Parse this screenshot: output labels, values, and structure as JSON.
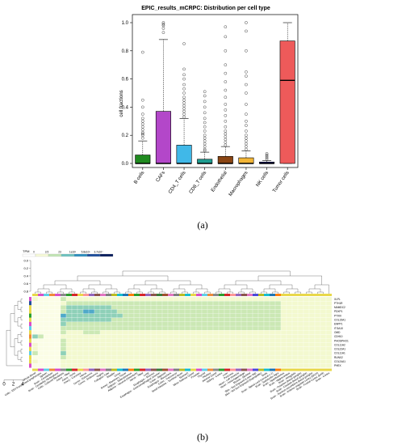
{
  "chart_data": [
    {
      "type": "box",
      "title": "EPIC_results_mCRPC: Distribution per cell type",
      "ylabel": "cell fractions",
      "ylim": [
        0,
        1.05
      ],
      "yticks": [
        0.0,
        0.2,
        0.4,
        0.6,
        0.8,
        1.0
      ],
      "categories": [
        "B cells",
        "CAFs",
        "CD4_T cells",
        "CD8_T cells",
        "Endothelial",
        "Macrophages",
        "NK cells",
        "Tumor cells"
      ],
      "colors": [
        "#1f8a1f",
        "#b347c9",
        "#40b8e8",
        "#1f9c90",
        "#8a4513",
        "#f2b536",
        "#1a1a80",
        "#ee5a5a"
      ],
      "boxes": [
        {
          "q1": 0.0,
          "median": 0.0,
          "q3": 0.06,
          "whisker_low": 0.0,
          "whisker_high": 0.16,
          "outliers": [
            0.18,
            0.2,
            0.21,
            0.22,
            0.24,
            0.26,
            0.28,
            0.3,
            0.32,
            0.35,
            0.4,
            0.45,
            0.79
          ]
        },
        {
          "q1": 0.0,
          "median": 0.0,
          "q3": 0.37,
          "whisker_low": 0.0,
          "whisker_high": 0.88,
          "outliers": [
            0.93,
            0.96,
            0.98,
            0.99,
            1.0
          ]
        },
        {
          "q1": 0.0,
          "median": 0.0,
          "q3": 0.13,
          "whisker_low": 0.0,
          "whisker_high": 0.32,
          "outliers": [
            0.33,
            0.35,
            0.37,
            0.39,
            0.41,
            0.43,
            0.45,
            0.47,
            0.5,
            0.53,
            0.56,
            0.6,
            0.63,
            0.67,
            0.85
          ]
        },
        {
          "q1": 0.0,
          "median": 0.0,
          "q3": 0.03,
          "whisker_low": 0.0,
          "whisker_high": 0.08,
          "outliers": [
            0.09,
            0.1,
            0.12,
            0.14,
            0.16,
            0.18,
            0.2,
            0.23,
            0.26,
            0.29,
            0.32,
            0.36,
            0.4,
            0.44,
            0.48,
            0.51
          ]
        },
        {
          "q1": 0.0,
          "median": 0.0,
          "q3": 0.05,
          "whisker_low": 0.0,
          "whisker_high": 0.12,
          "outliers": [
            0.13,
            0.15,
            0.17,
            0.19,
            0.21,
            0.23,
            0.26,
            0.3,
            0.34,
            0.38,
            0.42,
            0.47,
            0.52,
            0.58,
            0.64,
            0.7,
            0.8,
            0.9,
            0.97
          ]
        },
        {
          "q1": 0.0,
          "median": 0.0,
          "q3": 0.04,
          "whisker_low": 0.0,
          "whisker_high": 0.09,
          "outliers": [
            0.1,
            0.12,
            0.14,
            0.16,
            0.18,
            0.2,
            0.23,
            0.27,
            0.3,
            0.35,
            0.42,
            0.5,
            0.56,
            0.62,
            0.65,
            0.8,
            0.94,
            1.0
          ]
        },
        {
          "q1": 0.0,
          "median": 0.0,
          "q3": 0.01,
          "whisker_low": 0.0,
          "whisker_high": 0.02,
          "outliers": [
            0.03,
            0.04,
            0.05,
            0.06,
            0.07
          ]
        },
        {
          "q1": 0.0,
          "median": 0.59,
          "q3": 0.87,
          "whisker_low": 0.0,
          "whisker_high": 1.0,
          "outliers": []
        }
      ]
    },
    {
      "type": "heatmap",
      "legend_title": "TPM",
      "legend_ticks": [
        "0",
        "3.5",
        "23",
        "1e10³",
        "5.8e10³",
        "3.7e10⁴"
      ],
      "legend_colors": [
        "#ffffff",
        "#f7fbd9",
        "#c3e6b6",
        "#6fc3c0",
        "#2f8fbe",
        "#1f4e9c",
        "#0b1f5e"
      ],
      "col_dendro_ticks": [
        "0.0",
        "0.2",
        "0.4",
        "0.6",
        "0.8"
      ],
      "row_dendro_ticks": [
        "0",
        "2",
        "4"
      ],
      "genes": [
        "XLPL",
        "PTH1R",
        "MAMDC2",
        "PDXP1",
        "PTXIII",
        "COL15A1",
        "ENPP1",
        "ITGA10",
        "OMD",
        "CDH10",
        "PHOSPHO1",
        "COL11A2",
        "COL22A1",
        "COL11A1",
        "RUNX2",
        "COL24A1",
        "PHEX"
      ],
      "tissues": [
        "Whole Blood",
        "Cells - EBV-transformed lymphocytes",
        "Spleen",
        "Brain - Cerebellum",
        "Brain - Cerebellar Hemisphere",
        "Cells - Cultured fibroblasts",
        "Artery - Tibial",
        "Artery - Aorta",
        "Artery - Coronary",
        "Uterus",
        "Cervix - Ectocervix",
        "Cervix - Endocervix",
        "Vagina",
        "Fallopian Tube",
        "Bladder",
        "Ovary",
        "Breast - Mammary Tissue",
        "Adipose - Subcutaneous",
        "Adipose - Visceral (Omentum)",
        "Nerve - Tibial",
        "Lung",
        "Esophagus - Mucosa",
        "Esophagus - Gastroesophageal Junction",
        "Colon - Sigmoid",
        "Esophagus - Muscularis",
        "Colon - Transverse",
        "Small Intestine - Terminal Ileum",
        "Stomach",
        "Minor Salivary Gland",
        "Prostate",
        "Thyroid",
        "Pituitary",
        "Adrenal Gland",
        "Kidney - Cortex",
        "Liver",
        "Pancreas",
        "Heart - Left Ventricle",
        "Heart - Atrial Appendage",
        "Muscle - Skeletal",
        "Skin - Sun Exposed (Lower leg)",
        "Skin - Not Sun Exposed (Suprapubic)",
        "Testis",
        "Brain - Spinal cord (cervical c-1)",
        "Brain - Substantia nigra",
        "Brain - Hypothalamus",
        "Brain - Hippocampus",
        "Brain - Amygdala",
        "Brain - Putamen (basal ganglia)",
        "Brain - Caudate (basal ganglia)",
        "Brain - Nucleus accumbens (basal ganglia)",
        "Brain - Anterior cingulate cortex (BA24)",
        "Brain - Frontal Cortex (BA9)",
        "Brain - Cortex"
      ],
      "column_colors": [
        "#e8d84a",
        "#d94fc8",
        "#5fcfe8",
        "#ef8a3a",
        "#d94fc8",
        "#8a8a8a",
        "#2ca02c",
        "#d62728",
        "#e8d84a",
        "#ff9896",
        "#9467bd",
        "#8c564b",
        "#e377c2",
        "#7f7f7f",
        "#bcbd22",
        "#17becf",
        "#1f77b4",
        "#ff7f0e",
        "#2ca02c",
        "#d62728",
        "#9467bd",
        "#8c564b",
        "#3a7d3a",
        "#a0522d",
        "#e377c2",
        "#7f7f7f",
        "#bcbd22",
        "#17becf",
        "#e8d84a",
        "#d94fc8",
        "#5fcfe8",
        "#ef8a3a",
        "#8a8a8a",
        "#2ca02c",
        "#d62728",
        "#ff9896",
        "#9467bd",
        "#8c564b",
        "#e377c2",
        "#4a4ad9",
        "#bcbd22",
        "#17becf",
        "#1f77b4",
        "#ff7f0e",
        "#e8d84a",
        "#e8d84a",
        "#e8d84a",
        "#e8d84a",
        "#e8d84a",
        "#e8d84a",
        "#e8d84a",
        "#e8d84a",
        "#e8d84a"
      ],
      "row_colors": [
        "#d94fc8",
        "#1f4e9c",
        "#e8d84a",
        "#e8d84a",
        "#2ca02c",
        "#e8d84a",
        "#d94fc8",
        "#5fcfe8",
        "#e8d84a",
        "#ef8a3a",
        "#e8d84a",
        "#d94fc8",
        "#e8d84a",
        "#5fcfe8",
        "#e8d84a",
        "#e8d84a",
        "#d94fc8"
      ],
      "values": [
        [
          1,
          0,
          0,
          0,
          0,
          2,
          1,
          1,
          1,
          1,
          1,
          1,
          1,
          1,
          1,
          1,
          1,
          1,
          1,
          1,
          1,
          1,
          1,
          1,
          1,
          1,
          1,
          1,
          1,
          1,
          1,
          1,
          1,
          1,
          1,
          1,
          1,
          1,
          1,
          1,
          1,
          1,
          1,
          1,
          1,
          1,
          1,
          1,
          1,
          1,
          1,
          1,
          1
        ],
        [
          0,
          0,
          0,
          0,
          0,
          1,
          2,
          2,
          2,
          2,
          2,
          2,
          2,
          2,
          2,
          2,
          2,
          2,
          2,
          2,
          2,
          2,
          2,
          2,
          2,
          2,
          2,
          2,
          2,
          2,
          2,
          2,
          2,
          2,
          2,
          2,
          2,
          2,
          2,
          2,
          2,
          2,
          2,
          2,
          1,
          1,
          1,
          1,
          1,
          1,
          1,
          1,
          1
        ],
        [
          0,
          0,
          0,
          0,
          0,
          2,
          3,
          3,
          3,
          3,
          3,
          3,
          3,
          3,
          2,
          2,
          2,
          2,
          2,
          2,
          2,
          2,
          2,
          2,
          2,
          2,
          2,
          2,
          2,
          2,
          2,
          2,
          2,
          2,
          2,
          2,
          2,
          2,
          2,
          2,
          2,
          2,
          2,
          2,
          1,
          1,
          1,
          1,
          1,
          1,
          1,
          1,
          1
        ],
        [
          0,
          0,
          0,
          0,
          0,
          2,
          3,
          3,
          3,
          4,
          4,
          3,
          3,
          3,
          3,
          2,
          2,
          2,
          2,
          2,
          2,
          2,
          2,
          2,
          2,
          2,
          2,
          2,
          2,
          2,
          2,
          2,
          2,
          2,
          2,
          2,
          2,
          2,
          2,
          2,
          2,
          2,
          2,
          2,
          1,
          1,
          1,
          1,
          1,
          1,
          1,
          1,
          1
        ],
        [
          0,
          0,
          0,
          0,
          0,
          4,
          3,
          3,
          3,
          3,
          3,
          3,
          3,
          3,
          3,
          3,
          2,
          2,
          2,
          2,
          2,
          2,
          2,
          2,
          2,
          2,
          2,
          2,
          2,
          2,
          2,
          2,
          2,
          2,
          2,
          2,
          2,
          2,
          2,
          2,
          2,
          2,
          2,
          2,
          1,
          1,
          1,
          1,
          1,
          1,
          1,
          1,
          1
        ],
        [
          0,
          0,
          0,
          0,
          0,
          3,
          3,
          3,
          3,
          3,
          3,
          3,
          3,
          3,
          2,
          2,
          2,
          2,
          2,
          2,
          2,
          2,
          2,
          2,
          2,
          2,
          2,
          2,
          2,
          2,
          2,
          2,
          2,
          2,
          2,
          2,
          2,
          2,
          2,
          2,
          2,
          2,
          2,
          2,
          1,
          1,
          1,
          1,
          1,
          1,
          1,
          1,
          1
        ],
        [
          0,
          0,
          0,
          0,
          0,
          3,
          2,
          2,
          2,
          2,
          2,
          2,
          2,
          2,
          2,
          2,
          2,
          2,
          2,
          2,
          2,
          2,
          2,
          2,
          2,
          2,
          2,
          2,
          2,
          2,
          2,
          2,
          2,
          2,
          2,
          2,
          2,
          2,
          2,
          2,
          2,
          2,
          2,
          2,
          1,
          1,
          1,
          1,
          1,
          1,
          1,
          1,
          1
        ],
        [
          0,
          0,
          0,
          0,
          0,
          2,
          2,
          2,
          2,
          2,
          2,
          2,
          2,
          2,
          2,
          2,
          2,
          2,
          2,
          2,
          2,
          2,
          2,
          2,
          2,
          2,
          2,
          2,
          2,
          2,
          2,
          2,
          2,
          2,
          2,
          2,
          2,
          2,
          2,
          2,
          2,
          2,
          2,
          2,
          1,
          1,
          1,
          1,
          1,
          1,
          1,
          1,
          1
        ],
        [
          0,
          0,
          0,
          0,
          0,
          2,
          1,
          1,
          1,
          2,
          2,
          2,
          1,
          1,
          1,
          1,
          1,
          1,
          1,
          1,
          1,
          1,
          1,
          1,
          1,
          1,
          1,
          1,
          1,
          1,
          1,
          1,
          1,
          1,
          1,
          1,
          1,
          1,
          1,
          1,
          1,
          1,
          1,
          1,
          1,
          1,
          1,
          1,
          1,
          1,
          1,
          1,
          1
        ],
        [
          3,
          2,
          0,
          0,
          0,
          1,
          1,
          1,
          1,
          1,
          1,
          1,
          1,
          1,
          1,
          1,
          1,
          1,
          1,
          1,
          1,
          1,
          1,
          1,
          1,
          1,
          1,
          1,
          1,
          1,
          1,
          1,
          1,
          1,
          1,
          1,
          1,
          1,
          1,
          1,
          1,
          1,
          1,
          1,
          1,
          1,
          1,
          1,
          1,
          1,
          1,
          1,
          1
        ],
        [
          0,
          0,
          0,
          0,
          0,
          2,
          1,
          1,
          1,
          1,
          1,
          1,
          1,
          1,
          1,
          1,
          1,
          1,
          1,
          1,
          1,
          1,
          1,
          1,
          1,
          1,
          1,
          1,
          1,
          1,
          1,
          1,
          1,
          1,
          1,
          1,
          1,
          1,
          1,
          1,
          1,
          1,
          1,
          1,
          1,
          1,
          1,
          1,
          1,
          1,
          1,
          1,
          1
        ],
        [
          1,
          0,
          0,
          0,
          0,
          2,
          1,
          1,
          1,
          1,
          1,
          1,
          1,
          1,
          1,
          1,
          1,
          1,
          1,
          1,
          1,
          1,
          1,
          1,
          1,
          1,
          1,
          1,
          1,
          1,
          1,
          1,
          1,
          1,
          1,
          1,
          1,
          1,
          1,
          1,
          1,
          1,
          1,
          1,
          1,
          1,
          1,
          1,
          1,
          1,
          1,
          1,
          1
        ],
        [
          1,
          0,
          0,
          0,
          0,
          2,
          1,
          1,
          1,
          1,
          1,
          1,
          1,
          1,
          1,
          1,
          1,
          1,
          1,
          1,
          1,
          1,
          1,
          1,
          1,
          1,
          1,
          1,
          1,
          1,
          1,
          1,
          1,
          1,
          1,
          1,
          1,
          1,
          1,
          1,
          1,
          1,
          1,
          1,
          1,
          1,
          1,
          1,
          1,
          1,
          1,
          1,
          1
        ],
        [
          2,
          0,
          0,
          0,
          0,
          3,
          1,
          1,
          1,
          1,
          1,
          1,
          1,
          1,
          1,
          1,
          1,
          1,
          1,
          1,
          1,
          1,
          1,
          1,
          1,
          1,
          1,
          1,
          1,
          1,
          1,
          1,
          1,
          1,
          1,
          1,
          1,
          1,
          1,
          1,
          1,
          1,
          1,
          1,
          1,
          1,
          1,
          1,
          1,
          1,
          1,
          1,
          1
        ],
        [
          0,
          0,
          0,
          0,
          0,
          2,
          1,
          1,
          1,
          1,
          1,
          1,
          1,
          1,
          1,
          1,
          1,
          1,
          1,
          1,
          1,
          1,
          1,
          1,
          1,
          1,
          1,
          1,
          1,
          1,
          1,
          1,
          1,
          1,
          1,
          1,
          1,
          1,
          1,
          1,
          1,
          1,
          1,
          1,
          1,
          1,
          1,
          1,
          1,
          1,
          1,
          1,
          1
        ],
        [
          1,
          0,
          0,
          0,
          0,
          1,
          1,
          1,
          1,
          1,
          1,
          1,
          1,
          1,
          1,
          1,
          1,
          1,
          1,
          1,
          1,
          1,
          1,
          1,
          1,
          1,
          1,
          1,
          1,
          1,
          1,
          1,
          1,
          1,
          1,
          1,
          1,
          1,
          1,
          1,
          1,
          1,
          1,
          1,
          1,
          1,
          1,
          1,
          1,
          1,
          1,
          1,
          1
        ],
        [
          0,
          0,
          0,
          0,
          0,
          1,
          1,
          1,
          1,
          1,
          1,
          1,
          1,
          1,
          1,
          1,
          1,
          1,
          1,
          1,
          1,
          1,
          1,
          1,
          1,
          1,
          1,
          1,
          1,
          1,
          1,
          1,
          1,
          1,
          1,
          1,
          1,
          1,
          1,
          1,
          1,
          1,
          1,
          1,
          1,
          1,
          1,
          1,
          1,
          1,
          1,
          1,
          1
        ]
      ]
    }
  ],
  "panel_labels": {
    "a": "(a)",
    "b": "(b)"
  }
}
